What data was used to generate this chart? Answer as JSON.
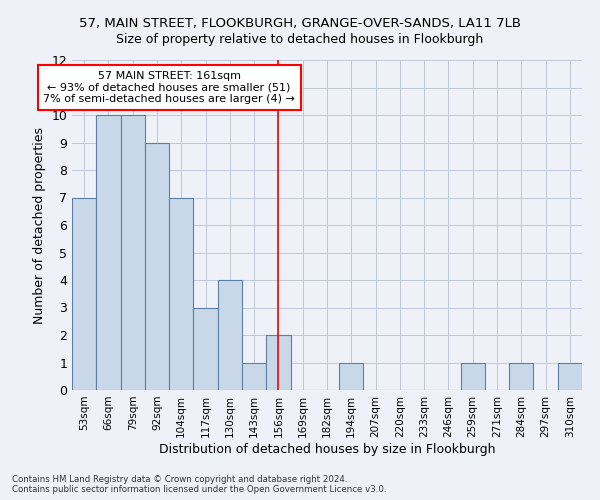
{
  "title_line1": "57, MAIN STREET, FLOOKBURGH, GRANGE-OVER-SANDS, LA11 7LB",
  "title_line2": "Size of property relative to detached houses in Flookburgh",
  "xlabel": "Distribution of detached houses by size in Flookburgh",
  "ylabel": "Number of detached properties",
  "categories": [
    "53sqm",
    "66sqm",
    "79sqm",
    "92sqm",
    "104sqm",
    "117sqm",
    "130sqm",
    "143sqm",
    "156sqm",
    "169sqm",
    "182sqm",
    "194sqm",
    "207sqm",
    "220sqm",
    "233sqm",
    "246sqm",
    "259sqm",
    "271sqm",
    "284sqm",
    "297sqm",
    "310sqm"
  ],
  "values": [
    7,
    10,
    10,
    9,
    7,
    3,
    4,
    1,
    2,
    0,
    0,
    1,
    0,
    0,
    0,
    0,
    1,
    0,
    1,
    0,
    1
  ],
  "bar_color": "#c8d8e8",
  "bar_edge_color": "#5b7fa6",
  "grid_color": "#c0c8d8",
  "background_color": "#eef2f8",
  "redline_index": 8,
  "redline_color": "red",
  "annotation_text": "57 MAIN STREET: 161sqm\n← 93% of detached houses are smaller (51)\n7% of semi-detached houses are larger (4) →",
  "annotation_box_color": "white",
  "annotation_border_color": "red",
  "ylim": [
    0,
    12
  ],
  "yticks": [
    0,
    1,
    2,
    3,
    4,
    5,
    6,
    7,
    8,
    9,
    10,
    11,
    12
  ],
  "footer_line1": "Contains HM Land Registry data © Crown copyright and database right 2024.",
  "footer_line2": "Contains public sector information licensed under the Open Government Licence v3.0."
}
